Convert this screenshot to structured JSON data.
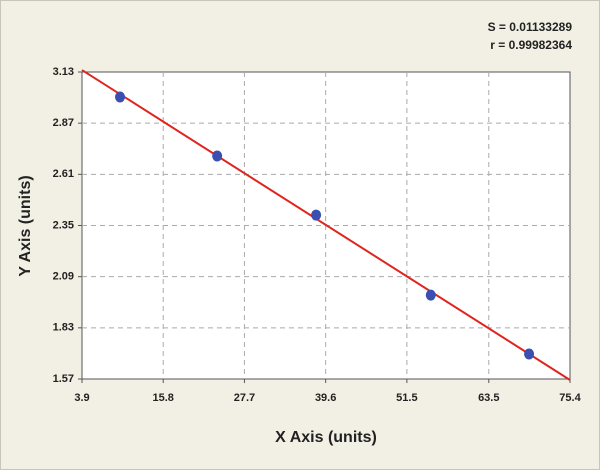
{
  "chart_data": {
    "type": "scatter",
    "annotations": [
      "S = 0.01133289",
      "r = 0.99982364"
    ],
    "xlabel": "X Axis (units)",
    "ylabel": "Y Axis (units)",
    "points": {
      "x": [
        9.47,
        23.7,
        38.2,
        55.0,
        69.4
      ],
      "y": [
        3.003,
        2.703,
        2.403,
        1.996,
        1.697
      ],
      "color": "#3a4fb0"
    },
    "fit_line": {
      "x": [
        3.9,
        75.4
      ],
      "y": [
        3.14,
        1.565
      ],
      "color": "#e0241e"
    },
    "xlim": [
      3.9,
      75.4
    ],
    "xticks": [
      3.9,
      15.8,
      27.7,
      39.6,
      51.5,
      63.5,
      75.4
    ],
    "ylim": [
      1.57,
      3.13
    ],
    "yticks": [
      1.57,
      1.83,
      2.09,
      2.35,
      2.61,
      2.87,
      3.13
    ],
    "grid": true
  }
}
